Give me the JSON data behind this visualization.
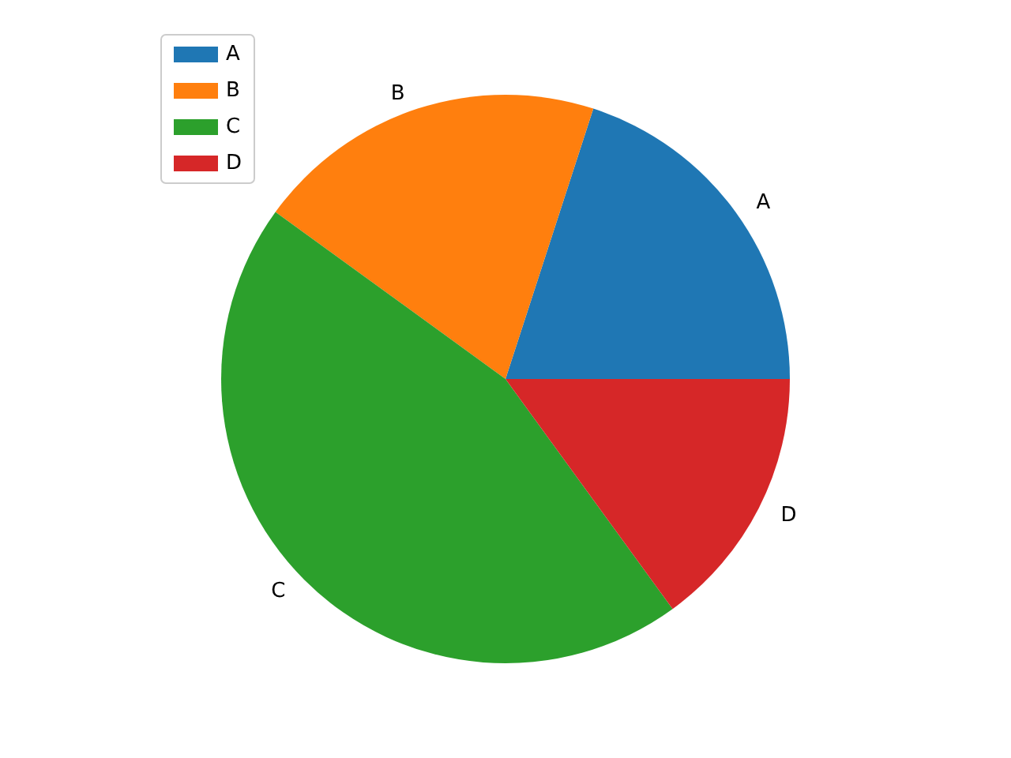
{
  "chart_data": {
    "type": "pie",
    "categories": [
      "A",
      "B",
      "C",
      "D"
    ],
    "values": [
      20,
      20,
      45,
      15
    ],
    "colors": [
      "#1f77b4",
      "#ff7f0e",
      "#2ca02c",
      "#d62728"
    ],
    "legend": "top left"
  }
}
